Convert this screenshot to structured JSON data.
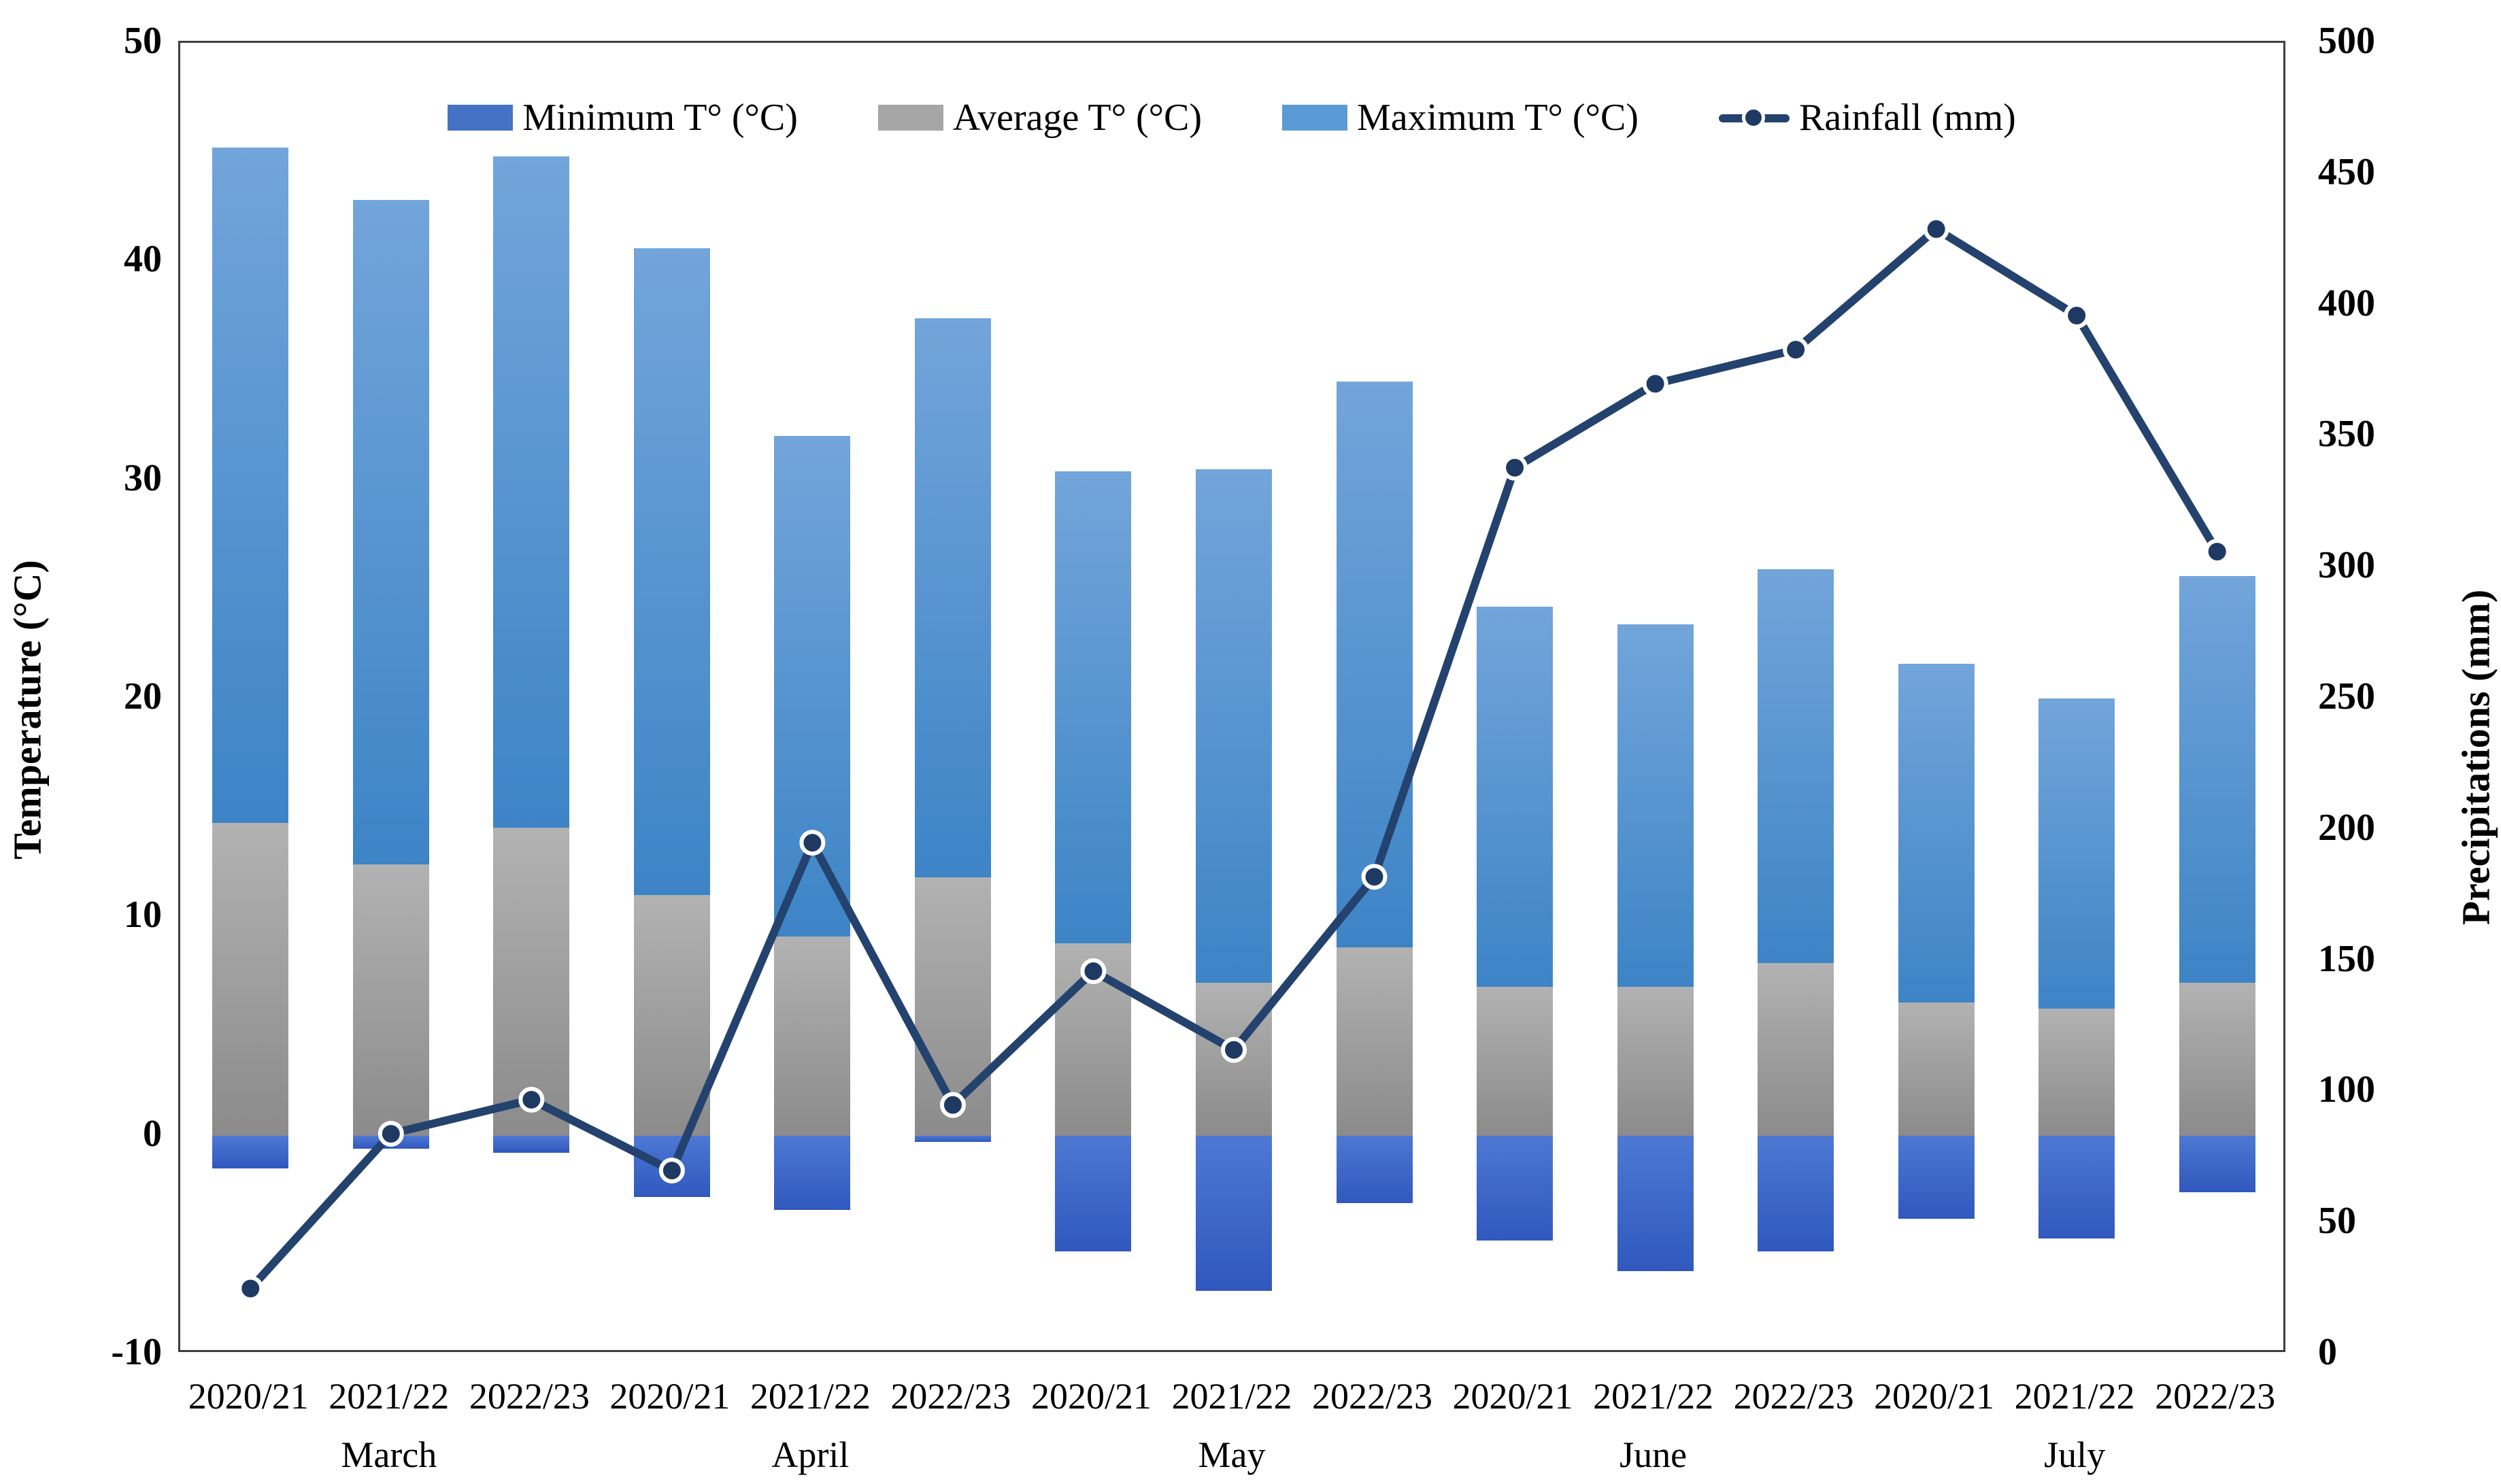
{
  "chart_data": {
    "type": "composite_bar_line",
    "title": "",
    "legend": {
      "minimum": "Minimum T° (°C)",
      "average": "Average T° (°C)",
      "maximum": "Maximum T° (°C)",
      "rainfall": "Rainfall (mm)"
    },
    "left_axis": {
      "title": "Temperature (°C)",
      "min": -10,
      "max": 50,
      "step": 10,
      "ticks": [
        50,
        40,
        30,
        20,
        10,
        0,
        -10
      ]
    },
    "right_axis": {
      "title": "Precipitations (mm)",
      "min": 0,
      "max": 500,
      "step": 50,
      "ticks": [
        500,
        450,
        400,
        350,
        300,
        250,
        200,
        150,
        100,
        50,
        0
      ]
    },
    "categories": [
      "2020/21",
      "2021/22",
      "2022/23",
      "2020/21",
      "2021/22",
      "2022/23",
      "2020/21",
      "2021/22",
      "2022/23",
      "2020/21",
      "2021/22",
      "2022/23",
      "2020/21",
      "2021/22",
      "2022/23"
    ],
    "month_groups": [
      {
        "label": "March",
        "center_index": 1
      },
      {
        "label": "April",
        "center_index": 4
      },
      {
        "label": "May",
        "center_index": 7
      },
      {
        "label": "June",
        "center_index": 10
      },
      {
        "label": "July",
        "center_index": 13
      }
    ],
    "series": [
      {
        "name": "Minimum T° (°C)",
        "type": "bar",
        "values": [
          -1.5,
          -0.6,
          -0.8,
          -2.8,
          -3.4,
          -0.3,
          -5.3,
          -7.1,
          -3.1,
          -4.8,
          -6.2,
          -5.3,
          -3.8,
          -4.7,
          -2.6
        ]
      },
      {
        "name": "Average T° (°C)",
        "type": "bar",
        "values": [
          14.3,
          12.4,
          14.1,
          11.0,
          9.1,
          11.8,
          8.8,
          7.0,
          8.6,
          6.8,
          6.8,
          7.9,
          6.1,
          5.8,
          7.0
        ]
      },
      {
        "name": "Maximum T° (°C)",
        "type": "bar",
        "values": [
          45.2,
          42.8,
          44.8,
          40.6,
          32.0,
          37.4,
          30.4,
          30.5,
          34.5,
          24.2,
          23.4,
          25.9,
          21.6,
          20.0,
          25.6
        ]
      },
      {
        "name": "Rainfall (mm)",
        "type": "line",
        "axis": "right",
        "values": [
          25,
          84,
          97,
          70,
          195,
          95,
          146,
          116,
          182,
          338,
          370,
          383,
          429,
          396,
          306
        ]
      }
    ],
    "layout_hints": {
      "grid": false,
      "legend_position": "top-inside",
      "bars_baseline": 0
    },
    "colors": {
      "minimum_solid": "#4472c4",
      "minimum_top": "#4d78d3",
      "minimum_bottom": "#3058be",
      "average_solid": "#a6a6a6",
      "average_top": "#b2b2b2",
      "average_bottom": "#8b8b8b",
      "maximum_solid": "#5b9bd5",
      "maximum_top": "#72a5da",
      "maximum_bottom": "#3d84c6",
      "rainfall_line": "#24426e",
      "rainfall_marker": "#1e3a63",
      "marker_ring": "#ffffff",
      "plot_border": "#3f3f3f"
    }
  }
}
